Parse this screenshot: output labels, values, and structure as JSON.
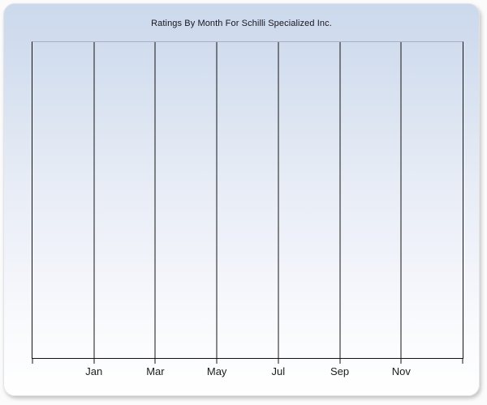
{
  "chart_data": {
    "type": "line",
    "title": "Ratings By Month For Schilli Specialized Inc.",
    "xlabel": "",
    "ylabel": "",
    "x_tick_labels": [
      "Jan",
      "Mar",
      "May",
      "Jul",
      "Sep",
      "Nov"
    ],
    "x_gridline_count": 8,
    "series": [],
    "grid": "vertical-only",
    "legend": "none",
    "colors": {
      "panel_gradient_top": "#ccd9ec",
      "panel_gradient_bottom": "#ffffff",
      "gridline": "#141414",
      "plot_top_border": "#a8b0bf",
      "title_text": "#16161e",
      "tick_label_text": "#1c1c1c"
    }
  }
}
